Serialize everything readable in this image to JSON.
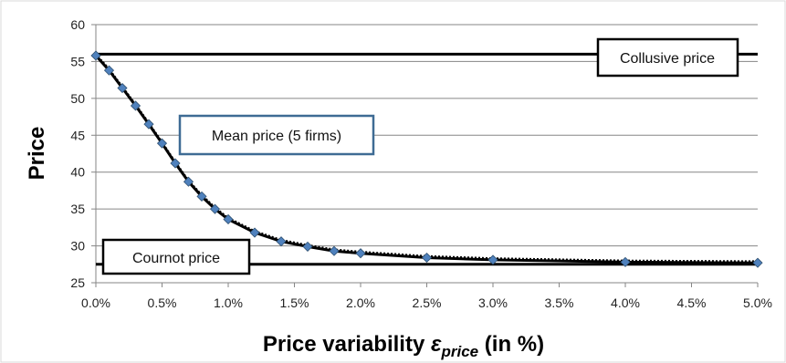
{
  "chart_data": {
    "type": "line",
    "ylabel": "Price",
    "xlabel_main": "Price variability ",
    "xlabel_symbol": "ε",
    "xlabel_sub": "price",
    "xlabel_tail": " (in %)",
    "xlim": [
      0,
      5
    ],
    "ylim": [
      25,
      60
    ],
    "x_ticks": [
      {
        "value": 0,
        "label": "0.0%"
      },
      {
        "value": 0.5,
        "label": "0.5%"
      },
      {
        "value": 1,
        "label": "1.0%"
      },
      {
        "value": 1.5,
        "label": "1.5%"
      },
      {
        "value": 2,
        "label": "2.0%"
      },
      {
        "value": 2.5,
        "label": "2.5%"
      },
      {
        "value": 3,
        "label": "3.0%"
      },
      {
        "value": 3.5,
        "label": "3.5%"
      },
      {
        "value": 4,
        "label": "4.0%"
      },
      {
        "value": 4.5,
        "label": "4.5%"
      },
      {
        "value": 5,
        "label": "5.0%"
      }
    ],
    "y_ticks": [
      25,
      30,
      35,
      40,
      45,
      50,
      55,
      60
    ],
    "grid": "horizontal",
    "series": [
      {
        "name": "Mean price (5 firms)",
        "marker": "diamond",
        "color": "#4f81bd",
        "x": [
          0,
          0.1,
          0.2,
          0.3,
          0.4,
          0.5,
          0.6,
          0.7,
          0.8,
          0.9,
          1.0,
          1.2,
          1.4,
          1.6,
          1.8,
          2.0,
          2.5,
          3.0,
          4.0,
          5.0
        ],
        "y": [
          55.8,
          53.8,
          51.4,
          49.0,
          46.5,
          43.9,
          41.2,
          38.7,
          36.7,
          35.0,
          33.6,
          31.8,
          30.6,
          29.9,
          29.3,
          29.0,
          28.4,
          28.1,
          27.8,
          27.7
        ]
      }
    ],
    "reference_lines": [
      {
        "label": "Collusive price",
        "y": 56
      },
      {
        "label": "Cournot price",
        "y": 27.5
      }
    ],
    "annotations": [
      {
        "text": "Mean price (5 firms)",
        "border": "#3e6b94"
      },
      {
        "text": "Collusive price",
        "border": "#000000"
      },
      {
        "text": "Cournot price",
        "border": "#000000"
      }
    ]
  }
}
